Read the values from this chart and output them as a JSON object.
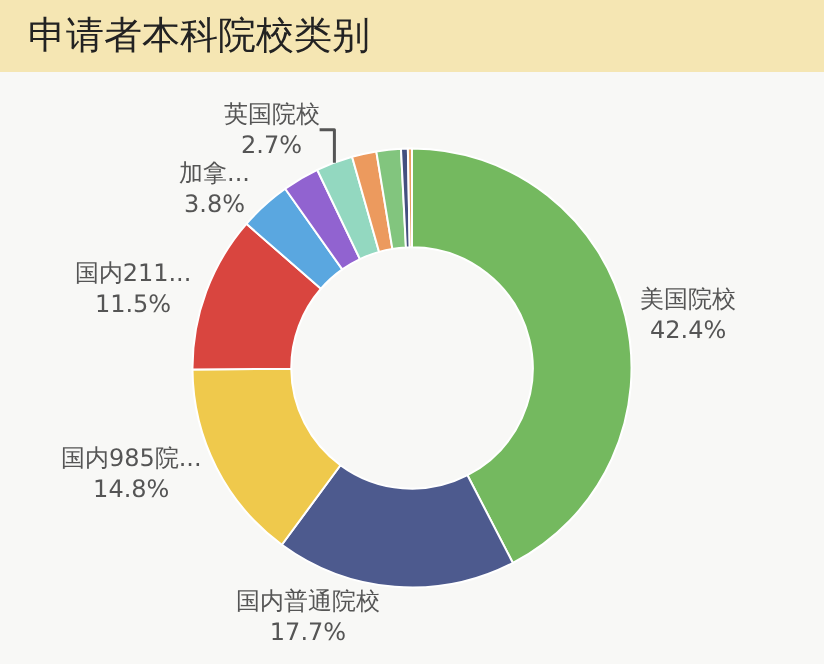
{
  "chart_data": {
    "type": "donut",
    "title": "申请者本科院校类别",
    "categories": [
      "美国院校",
      "国内普通院校",
      "国内985院...",
      "国内211...",
      "加拿...",
      null,
      "英国院校",
      null,
      null,
      null,
      null
    ],
    "values": [
      42.4,
      17.7,
      14.8,
      11.5,
      3.8,
      2.7,
      2.7,
      1.8,
      1.8,
      0.5,
      0.3
    ],
    "value_labels": [
      "42.4%",
      "17.7%",
      "14.8%",
      "11.5%",
      "3.8%",
      null,
      "2.7%",
      null,
      null,
      null,
      null
    ],
    "colors": [
      "#74b95f",
      "#4d5a8e",
      "#efc94c",
      "#d9453f",
      "#5aa7e0",
      "#9163d0",
      "#93d8c0",
      "#ec9a5e",
      "#82c57e",
      "#44507f",
      "#e8a060"
    ],
    "legend": false
  }
}
